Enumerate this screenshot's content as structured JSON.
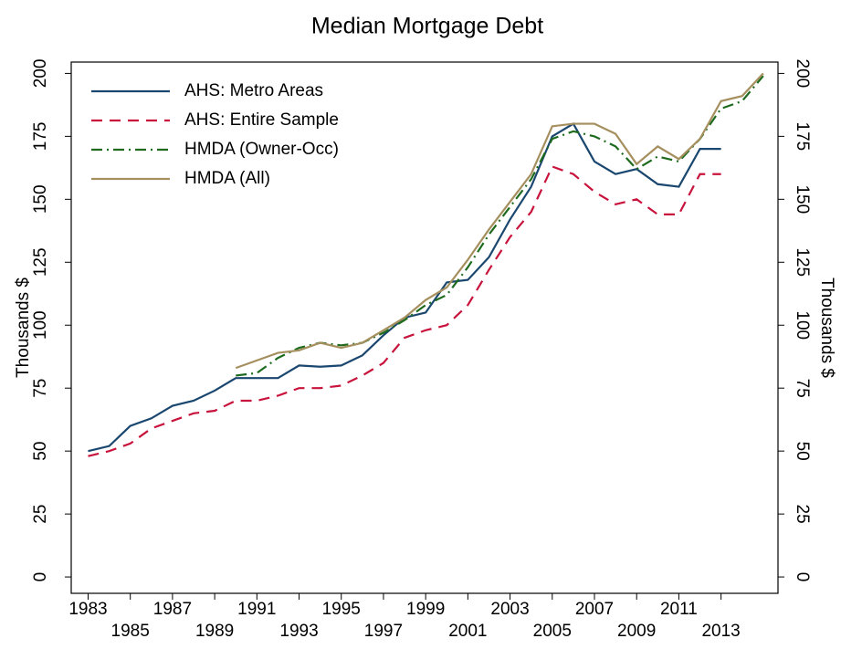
{
  "chart_data": {
    "type": "line",
    "title": "Median Mortgage Debt",
    "ylabel": "Thousands $",
    "y2label": "Thousands $",
    "x": [
      1983,
      1984,
      1985,
      1986,
      1987,
      1988,
      1989,
      1990,
      1991,
      1992,
      1993,
      1994,
      1995,
      1996,
      1997,
      1998,
      1999,
      2000,
      2001,
      2002,
      2003,
      2004,
      2005,
      2006,
      2007,
      2008,
      2009,
      2010,
      2011,
      2012,
      2013,
      2014,
      2015
    ],
    "series": [
      {
        "name": "AHS: Metro Areas",
        "color": "#1a476f",
        "style": "solid",
        "values": [
          50,
          52,
          60,
          63,
          68,
          70,
          74,
          79,
          79,
          79,
          84,
          83.5,
          84,
          88,
          96,
          103,
          105,
          117,
          118,
          127,
          142,
          155,
          175,
          180,
          165,
          160,
          162,
          156,
          155,
          170,
          170,
          null,
          null
        ]
      },
      {
        "name": "AHS: Entire Sample",
        "color": "#c8143c",
        "style": "dash",
        "values": [
          48,
          50,
          53,
          59,
          62,
          65,
          66,
          70,
          70,
          72,
          75,
          75,
          76,
          80,
          85,
          95,
          98,
          100,
          108,
          122,
          135,
          145,
          163,
          160,
          153,
          148,
          150,
          144,
          144,
          160,
          160,
          null,
          null
        ]
      },
      {
        "name": "HMDA (Owner-Occ)",
        "color": "#1e6b1e",
        "style": "dashdot",
        "values": [
          null,
          null,
          null,
          null,
          null,
          null,
          null,
          80,
          81,
          87,
          91,
          93,
          92,
          93,
          97,
          102,
          108,
          112,
          123,
          136,
          147,
          158,
          174,
          177,
          175,
          171,
          162,
          167,
          165,
          174,
          186,
          189,
          199
        ]
      },
      {
        "name": "HMDA (All)",
        "color": "#a58f5e",
        "style": "solid",
        "values": [
          null,
          null,
          null,
          null,
          null,
          null,
          null,
          83,
          86,
          89,
          90,
          93,
          91,
          93,
          98,
          103,
          110,
          115,
          126,
          138,
          149,
          160,
          179,
          180,
          180,
          176,
          164,
          171,
          166,
          174,
          189,
          191,
          200
        ]
      }
    ],
    "xlim": [
      1982.2,
      2015.7
    ],
    "xticks": [
      1983,
      1985,
      1987,
      1989,
      1991,
      1993,
      1995,
      1997,
      1999,
      2001,
      2003,
      2005,
      2007,
      2009,
      2011,
      2013
    ],
    "ylim": [
      -6.5,
      204.5
    ],
    "yticks": [
      0,
      25,
      50,
      75,
      100,
      125,
      150,
      175,
      200
    ],
    "y2lim": [
      -6.5,
      204.5
    ],
    "y2ticks": [
      0,
      25,
      50,
      75,
      100,
      125,
      150,
      175,
      200
    ],
    "legend": "upper-left"
  }
}
